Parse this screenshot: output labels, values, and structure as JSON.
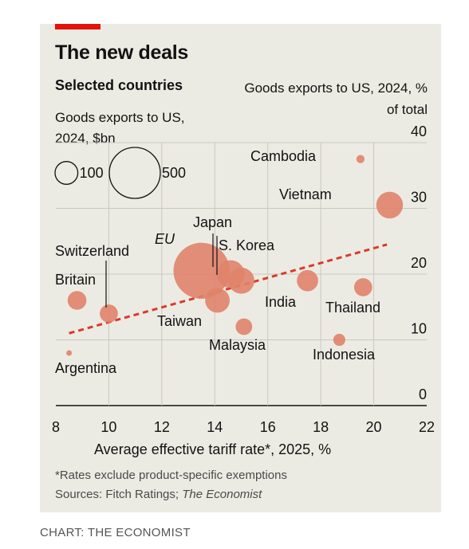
{
  "header": {
    "title": "The new deals",
    "subtitle": "Selected countries"
  },
  "footer": {
    "footnote": "*Rates exclude product-specific exemptions",
    "sources_prefix": "Sources: Fitch Ratings; ",
    "sources_italic": "The Economist",
    "credit": "CHART: THE ECONOMIST"
  },
  "colors": {
    "accent": "#e3120b",
    "bubble": "#e0836a",
    "trend": "#d93a2b",
    "grid": "#c9c8c0",
    "background": "#ecebe3"
  },
  "chart_data": {
    "type": "scatter",
    "title": "The new deals",
    "subtitle": "Selected countries",
    "xlabel": "Average effective tariff rate*, 2025, %",
    "ylabel": "Goods exports to US, 2024, % of total",
    "xlim": [
      8,
      22
    ],
    "ylim": [
      0,
      40
    ],
    "x_ticks": [
      8,
      10,
      12,
      14,
      16,
      18,
      20,
      22
    ],
    "y_ticks": [
      0,
      10,
      20,
      30,
      40
    ],
    "grid": true,
    "size_legend": {
      "title": "Goods exports to US, 2024, $bn",
      "values": [
        100,
        500
      ],
      "labels": [
        "100",
        "500"
      ]
    },
    "points": [
      {
        "label": "Argentina",
        "x": 8.5,
        "y": 8,
        "size": 6
      },
      {
        "label": "Britain",
        "x": 8.8,
        "y": 16,
        "size": 68
      },
      {
        "label": "Switzerland",
        "x": 10.0,
        "y": 14,
        "size": 63
      },
      {
        "label": "EU",
        "x": 13.5,
        "y": 20.5,
        "size": 606
      },
      {
        "label": "Japan",
        "x": 14.6,
        "y": 20,
        "size": 148
      },
      {
        "label": "S. Korea",
        "x": 15.0,
        "y": 19,
        "size": 131
      },
      {
        "label": "Taiwan",
        "x": 14.1,
        "y": 16,
        "size": 116
      },
      {
        "label": "Malaysia",
        "x": 15.1,
        "y": 12,
        "size": 53
      },
      {
        "label": "India",
        "x": 17.5,
        "y": 19,
        "size": 87
      },
      {
        "label": "Indonesia",
        "x": 18.7,
        "y": 10,
        "size": 28
      },
      {
        "label": "Thailand",
        "x": 19.6,
        "y": 18,
        "size": 63
      },
      {
        "label": "Vietnam",
        "x": 20.6,
        "y": 30.5,
        "size": 137
      },
      {
        "label": "Cambodia",
        "x": 19.5,
        "y": 37.5,
        "size": 13
      }
    ],
    "trendline": {
      "x": [
        8.5,
        20.5
      ],
      "y": [
        11,
        24.5
      ],
      "style": "dashed"
    }
  }
}
